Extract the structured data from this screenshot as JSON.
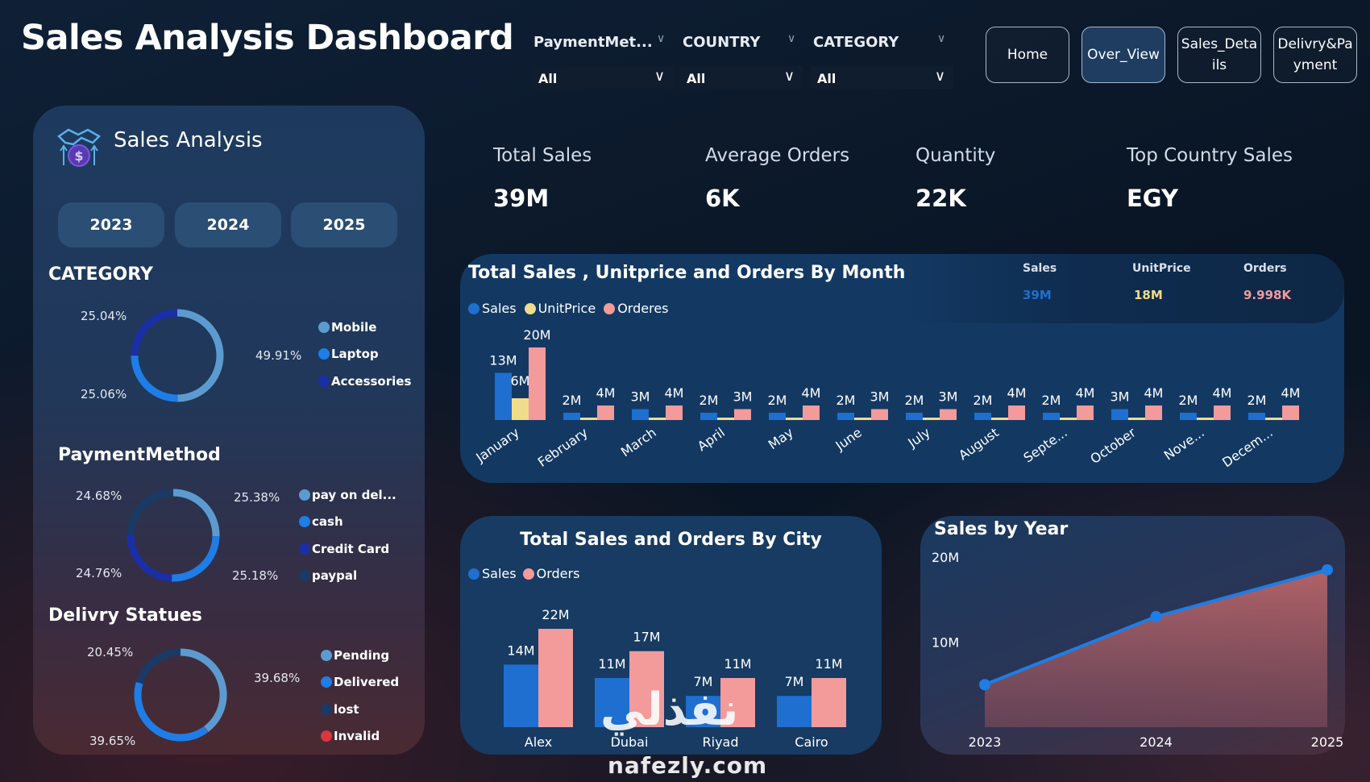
{
  "header": {
    "title": "Sales Analysis Dashboard"
  },
  "filters": [
    {
      "label": "PaymentMet...",
      "value": "All"
    },
    {
      "label": "COUNTRY",
      "value": "All"
    },
    {
      "label": "CATEGORY",
      "value": "All"
    }
  ],
  "nav": {
    "home": "Home",
    "overview": "Over_View",
    "sales_details": "Sales_Details",
    "delivery_payment": "Delivry&Payment"
  },
  "left": {
    "title": "Sales Analysis",
    "years": [
      "2023",
      "2024",
      "2025"
    ],
    "category": {
      "title": "CATEGORY",
      "items": [
        {
          "label": "Mobile",
          "pct": "49.91%",
          "value": 49.91,
          "color": "#5c9bd0"
        },
        {
          "label": "Laptop",
          "pct": "25.06%",
          "value": 25.06,
          "color": "#1e7de6"
        },
        {
          "label": "Accessories",
          "pct": "25.04%",
          "value": 25.04,
          "color": "#1a2fa6"
        }
      ]
    },
    "payment": {
      "title": "PaymentMethod",
      "items": [
        {
          "label": "pay on del...",
          "pct": "25.38%",
          "value": 25.38,
          "color": "#5c9bd0"
        },
        {
          "label": "cash",
          "pct": "25.18%",
          "value": 25.18,
          "color": "#1e7de6"
        },
        {
          "label": "Credit Card",
          "pct": "24.76%",
          "value": 24.76,
          "color": "#1a2fa6"
        },
        {
          "label": "paypal",
          "pct": "24.68%",
          "value": 24.68,
          "color": "#1a3a66"
        }
      ]
    },
    "delivery": {
      "title": "Delivry Statues",
      "items": [
        {
          "label": "Pending",
          "pct": "39.68%",
          "value": 39.68,
          "color": "#5c9bd0"
        },
        {
          "label": "Delivered",
          "pct": "39.65%",
          "value": 39.65,
          "color": "#1e7de6"
        },
        {
          "label": "lost",
          "pct": "20.45%",
          "value": 20.45,
          "color": "#1a3a66"
        },
        {
          "label": "Invalid",
          "pct": "",
          "value": 0.22,
          "color": "#d9363e"
        }
      ]
    }
  },
  "kpis": [
    {
      "label": "Total Sales",
      "value": "39M"
    },
    {
      "label": "Average Orders",
      "value": "6K"
    },
    {
      "label": "Quantity",
      "value": "22K"
    },
    {
      "label": "Top Country Sales",
      "value": "EGY"
    }
  ],
  "monthly": {
    "title": "Total Sales , Unitprice and Orders By Month",
    "legend": [
      "Sales",
      "UnitPrice",
      "Orderes"
    ],
    "summary": [
      {
        "label": "Sales",
        "value": "39M",
        "color": "#1e6fd0"
      },
      {
        "label": "UnitPrice",
        "value": "18M",
        "color": "#f0dd8c"
      },
      {
        "label": "Orders",
        "value": "9.998K",
        "color": "#f39a9a"
      }
    ],
    "colors": {
      "sales": "#1e6fd0",
      "unitprice": "#f0dd8c",
      "orders": "#f39a9a"
    }
  },
  "city": {
    "title": "Total Sales and Orders By City",
    "legend": [
      "Sales",
      "Orders"
    ]
  },
  "year": {
    "title": "Sales by Year"
  },
  "watermark": {
    "arabic": "نفذلي",
    "latin": "nafezly.com"
  },
  "chart_data": [
    {
      "type": "bar",
      "title": "Total Sales , Unitprice and Orders By Month",
      "categories": [
        "January",
        "February",
        "March",
        "April",
        "May",
        "June",
        "July",
        "August",
        "Septe...",
        "October",
        "Nove...",
        "Decem..."
      ],
      "series": [
        {
          "name": "Sales",
          "values": [
            13,
            2,
            3,
            2,
            2,
            2,
            2,
            2,
            2,
            3,
            2,
            2
          ],
          "labels": [
            "13M",
            "2M",
            "3M",
            "2M",
            "2M",
            "2M",
            "2M",
            "2M",
            "2M",
            "3M",
            "2M",
            "2M"
          ]
        },
        {
          "name": "UnitPrice",
          "values": [
            6,
            0.3,
            0.3,
            0.3,
            0.3,
            0.3,
            0.3,
            0.3,
            0.3,
            0.3,
            0.3,
            0.3
          ],
          "labels": [
            "6M",
            "",
            "",
            "",
            "",
            "",
            "",
            "",
            "",
            "",
            "",
            ""
          ]
        },
        {
          "name": "Orderes",
          "values": [
            20,
            4,
            4,
            3,
            4,
            3,
            3,
            4,
            4,
            4,
            4,
            4
          ],
          "labels": [
            "20M",
            "4M",
            "4M",
            "3M",
            "4M",
            "3M",
            "3M",
            "4M",
            "4M",
            "4M",
            "4M",
            "4M"
          ]
        }
      ],
      "ylim": [
        0,
        20
      ]
    },
    {
      "type": "bar",
      "title": "Total Sales and Orders By City",
      "categories": [
        "Alex",
        "Dubai",
        "Riyad",
        "Cairo"
      ],
      "series": [
        {
          "name": "Sales",
          "values": [
            14,
            11,
            7,
            7
          ],
          "labels": [
            "14M",
            "11M",
            "7M",
            "7M"
          ]
        },
        {
          "name": "Orders",
          "values": [
            22,
            17,
            11,
            11
          ],
          "labels": [
            "22M",
            "17M",
            "11M",
            "11M"
          ]
        }
      ],
      "ylim": [
        0,
        22
      ]
    },
    {
      "type": "area",
      "title": "Sales by Year",
      "x": [
        "2023",
        "2024",
        "2025"
      ],
      "y": [
        5,
        13,
        18.5
      ],
      "yticks": [
        "10M",
        "20M"
      ],
      "ytick_values": [
        10,
        20
      ],
      "ylim": [
        0,
        20
      ]
    }
  ]
}
